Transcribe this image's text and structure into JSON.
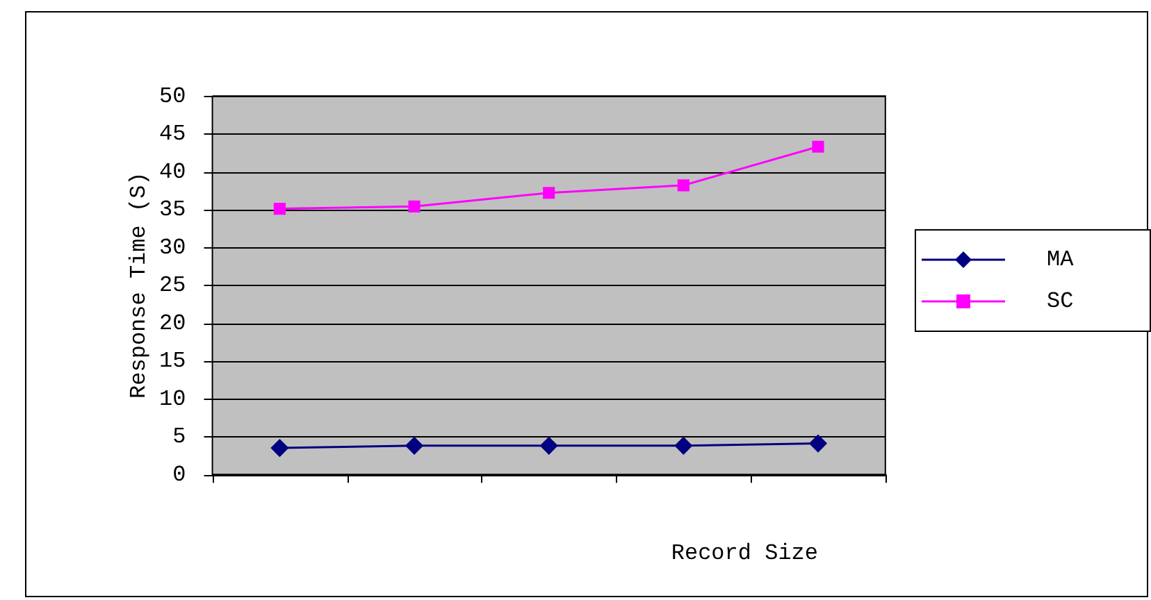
{
  "chart_data": {
    "type": "line",
    "xlabel": "Record Size",
    "ylabel": "Response Time (S)",
    "categories": [
      null,
      null,
      null,
      null,
      null
    ],
    "series": [
      {
        "name": "MA",
        "color": "#000080",
        "marker": "diamond",
        "values": [
          3.5,
          3.8,
          3.8,
          3.8,
          4.1
        ]
      },
      {
        "name": "SC",
        "color": "#ff00ff",
        "marker": "square",
        "values": [
          35.1,
          35.4,
          37.2,
          38.2,
          43.3
        ]
      }
    ],
    "ylim": [
      0,
      50
    ],
    "yticks": [
      0,
      5,
      10,
      15,
      20,
      25,
      30,
      35,
      40,
      45,
      50
    ],
    "grid": "y",
    "legend": "right",
    "line_style": "solid"
  }
}
